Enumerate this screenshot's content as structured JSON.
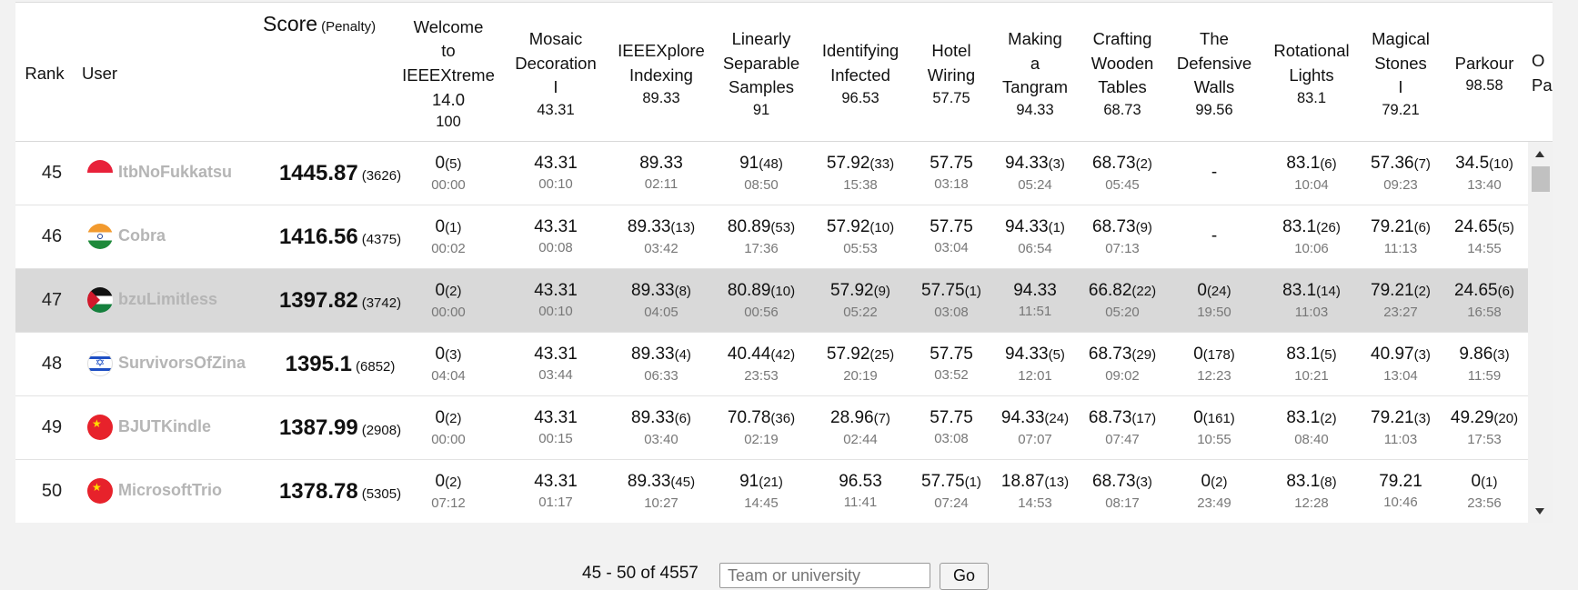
{
  "header": {
    "rank": "Rank",
    "user": "User",
    "score": "Score",
    "penalty": "(Penalty)",
    "problems": [
      {
        "lines": [
          "Welcome",
          "to",
          "IEEEXtreme",
          "14.0"
        ],
        "points": "100"
      },
      {
        "lines": [
          "Mosaic",
          "Decoration",
          "I"
        ],
        "points": "43.31"
      },
      {
        "lines": [
          "IEEEXplore",
          "Indexing"
        ],
        "points": "89.33"
      },
      {
        "lines": [
          "Linearly",
          "Separable",
          "Samples"
        ],
        "points": "91"
      },
      {
        "lines": [
          "Identifying",
          "Infected"
        ],
        "points": "96.53"
      },
      {
        "lines": [
          "Hotel",
          "Wiring"
        ],
        "points": "57.75"
      },
      {
        "lines": [
          "Making",
          "a",
          "Tangram"
        ],
        "points": "94.33"
      },
      {
        "lines": [
          "Crafting",
          "Wooden",
          "Tables"
        ],
        "points": "68.73"
      },
      {
        "lines": [
          "The",
          "Defensive",
          "Walls"
        ],
        "points": "99.56"
      },
      {
        "lines": [
          "Rotational",
          "Lights"
        ],
        "points": "83.1"
      },
      {
        "lines": [
          "Magical",
          "Stones",
          "I"
        ],
        "points": "79.21"
      },
      {
        "lines": [
          "Parkour"
        ],
        "points": "98.58"
      }
    ],
    "cut_col": {
      "lines": [
        "O",
        "Pa"
      ]
    }
  },
  "rows": [
    {
      "rank": "45",
      "user": "ItbNoFukkatsu",
      "flag": "indonesia",
      "score": "1445.87",
      "penalty": "(3626)",
      "highlight": false,
      "cells": [
        {
          "v": "0",
          "tries": "(5)",
          "t": "00:00"
        },
        {
          "v": "43.31",
          "tries": "",
          "t": "00:10"
        },
        {
          "v": "89.33",
          "tries": "",
          "t": "02:11"
        },
        {
          "v": "91",
          "tries": "(48)",
          "t": "08:50"
        },
        {
          "v": "57.92",
          "tries": "(33)",
          "t": "15:38"
        },
        {
          "v": "57.75",
          "tries": "",
          "t": "03:18"
        },
        {
          "v": "94.33",
          "tries": "(3)",
          "t": "05:24"
        },
        {
          "v": "68.73",
          "tries": "(2)",
          "t": "05:45"
        },
        {
          "v": "-",
          "tries": "",
          "t": ""
        },
        {
          "v": "83.1",
          "tries": "(6)",
          "t": "10:04"
        },
        {
          "v": "57.36",
          "tries": "(7)",
          "t": "09:23"
        },
        {
          "v": "34.5",
          "tries": "(10)",
          "t": "13:40"
        }
      ]
    },
    {
      "rank": "46",
      "user": "Cobra",
      "flag": "india",
      "score": "1416.56",
      "penalty": "(4375)",
      "highlight": false,
      "cells": [
        {
          "v": "0",
          "tries": "(1)",
          "t": "00:02"
        },
        {
          "v": "43.31",
          "tries": "",
          "t": "00:08"
        },
        {
          "v": "89.33",
          "tries": "(13)",
          "t": "03:42"
        },
        {
          "v": "80.89",
          "tries": "(53)",
          "t": "17:36"
        },
        {
          "v": "57.92",
          "tries": "(10)",
          "t": "05:53"
        },
        {
          "v": "57.75",
          "tries": "",
          "t": "03:04"
        },
        {
          "v": "94.33",
          "tries": "(1)",
          "t": "06:54"
        },
        {
          "v": "68.73",
          "tries": "(9)",
          "t": "07:13"
        },
        {
          "v": "-",
          "tries": "",
          "t": ""
        },
        {
          "v": "83.1",
          "tries": "(26)",
          "t": "10:06"
        },
        {
          "v": "79.21",
          "tries": "(6)",
          "t": "11:13"
        },
        {
          "v": "24.65",
          "tries": "(5)",
          "t": "14:55"
        }
      ]
    },
    {
      "rank": "47",
      "user": "bzuLimitless",
      "flag": "palestine",
      "score": "1397.82",
      "penalty": "(3742)",
      "highlight": true,
      "cells": [
        {
          "v": "0",
          "tries": "(2)",
          "t": "00:00"
        },
        {
          "v": "43.31",
          "tries": "",
          "t": "00:10"
        },
        {
          "v": "89.33",
          "tries": "(8)",
          "t": "04:05"
        },
        {
          "v": "80.89",
          "tries": "(10)",
          "t": "00:56"
        },
        {
          "v": "57.92",
          "tries": "(9)",
          "t": "05:22"
        },
        {
          "v": "57.75",
          "tries": "(1)",
          "t": "03:08"
        },
        {
          "v": "94.33",
          "tries": "",
          "t": "11:51"
        },
        {
          "v": "66.82",
          "tries": "(22)",
          "t": "05:20"
        },
        {
          "v": "0",
          "tries": "(24)",
          "t": "19:50"
        },
        {
          "v": "83.1",
          "tries": "(14)",
          "t": "11:03"
        },
        {
          "v": "79.21",
          "tries": "(2)",
          "t": "23:27"
        },
        {
          "v": "24.65",
          "tries": "(6)",
          "t": "16:58"
        }
      ]
    },
    {
      "rank": "48",
      "user": "SurvivorsOfZina",
      "flag": "israel",
      "score": "1395.1",
      "penalty": "(6852)",
      "highlight": false,
      "cells": [
        {
          "v": "0",
          "tries": "(3)",
          "t": "04:04"
        },
        {
          "v": "43.31",
          "tries": "",
          "t": "03:44"
        },
        {
          "v": "89.33",
          "tries": "(4)",
          "t": "06:33"
        },
        {
          "v": "40.44",
          "tries": "(42)",
          "t": "23:53"
        },
        {
          "v": "57.92",
          "tries": "(25)",
          "t": "20:19"
        },
        {
          "v": "57.75",
          "tries": "",
          "t": "03:52"
        },
        {
          "v": "94.33",
          "tries": "(5)",
          "t": "12:01"
        },
        {
          "v": "68.73",
          "tries": "(29)",
          "t": "09:02"
        },
        {
          "v": "0",
          "tries": "(178)",
          "t": "12:23"
        },
        {
          "v": "83.1",
          "tries": "(5)",
          "t": "10:21"
        },
        {
          "v": "40.97",
          "tries": "(3)",
          "t": "13:04"
        },
        {
          "v": "9.86",
          "tries": "(3)",
          "t": "11:59"
        }
      ]
    },
    {
      "rank": "49",
      "user": "BJUTKindle",
      "flag": "china",
      "score": "1387.99",
      "penalty": "(2908)",
      "highlight": false,
      "cells": [
        {
          "v": "0",
          "tries": "(2)",
          "t": "00:00"
        },
        {
          "v": "43.31",
          "tries": "",
          "t": "00:15"
        },
        {
          "v": "89.33",
          "tries": "(6)",
          "t": "03:40"
        },
        {
          "v": "70.78",
          "tries": "(36)",
          "t": "02:19"
        },
        {
          "v": "28.96",
          "tries": "(7)",
          "t": "02:44"
        },
        {
          "v": "57.75",
          "tries": "",
          "t": "03:08"
        },
        {
          "v": "94.33",
          "tries": "(24)",
          "t": "07:07"
        },
        {
          "v": "68.73",
          "tries": "(17)",
          "t": "07:47"
        },
        {
          "v": "0",
          "tries": "(161)",
          "t": "10:55"
        },
        {
          "v": "83.1",
          "tries": "(2)",
          "t": "08:40"
        },
        {
          "v": "79.21",
          "tries": "(3)",
          "t": "11:03"
        },
        {
          "v": "49.29",
          "tries": "(20)",
          "t": "17:53"
        }
      ]
    },
    {
      "rank": "50",
      "user": "MicrosoftTrio",
      "flag": "china",
      "score": "1378.78",
      "penalty": "(5305)",
      "highlight": false,
      "cells": [
        {
          "v": "0",
          "tries": "(2)",
          "t": "07:12"
        },
        {
          "v": "43.31",
          "tries": "",
          "t": "01:17"
        },
        {
          "v": "89.33",
          "tries": "(45)",
          "t": "10:27"
        },
        {
          "v": "91",
          "tries": "(21)",
          "t": "14:45"
        },
        {
          "v": "96.53",
          "tries": "",
          "t": "11:41"
        },
        {
          "v": "57.75",
          "tries": "(1)",
          "t": "07:24"
        },
        {
          "v": "18.87",
          "tries": "(13)",
          "t": "14:53"
        },
        {
          "v": "68.73",
          "tries": "(3)",
          "t": "08:17"
        },
        {
          "v": "0",
          "tries": "(2)",
          "t": "23:49"
        },
        {
          "v": "83.1",
          "tries": "(8)",
          "t": "12:28"
        },
        {
          "v": "79.21",
          "tries": "",
          "t": "10:46"
        },
        {
          "v": "0",
          "tries": "(1)",
          "t": "23:56"
        }
      ]
    }
  ],
  "pager": {
    "range_text": "45 - 50 of 4557",
    "input_placeholder": "Team or university",
    "go_label": "Go"
  },
  "colors": {
    "highlight_row": "#d9d9d9",
    "username": "#b5b5b5",
    "time": "#777777"
  }
}
